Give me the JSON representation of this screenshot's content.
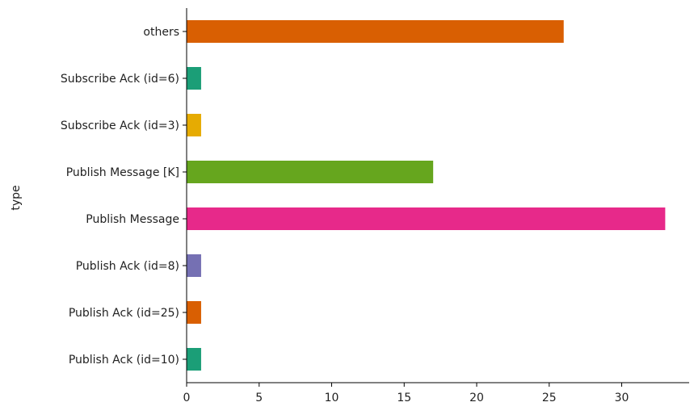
{
  "chart_data": {
    "type": "bar",
    "orientation": "horizontal",
    "title": "",
    "xlabel": "",
    "ylabel": "type",
    "xlim": [
      0,
      34.65
    ],
    "xticks": [
      0,
      5,
      10,
      15,
      20,
      25,
      30
    ],
    "grid": false,
    "legend": "none",
    "categories": [
      "others",
      "Subscribe Ack (id=6)",
      "Subscribe Ack (id=3)",
      "Publish Message [K]",
      "Publish Message",
      "Publish Ack (id=8)",
      "Publish Ack (id=25)",
      "Publish Ack (id=10)"
    ],
    "values": [
      26,
      1,
      1,
      17,
      33,
      1,
      1,
      1
    ],
    "colors": [
      "#d95f02",
      "#1b9e77",
      "#e6ab02",
      "#66a61e",
      "#e7298a",
      "#7570b3",
      "#d95f02",
      "#1b9e77"
    ]
  }
}
